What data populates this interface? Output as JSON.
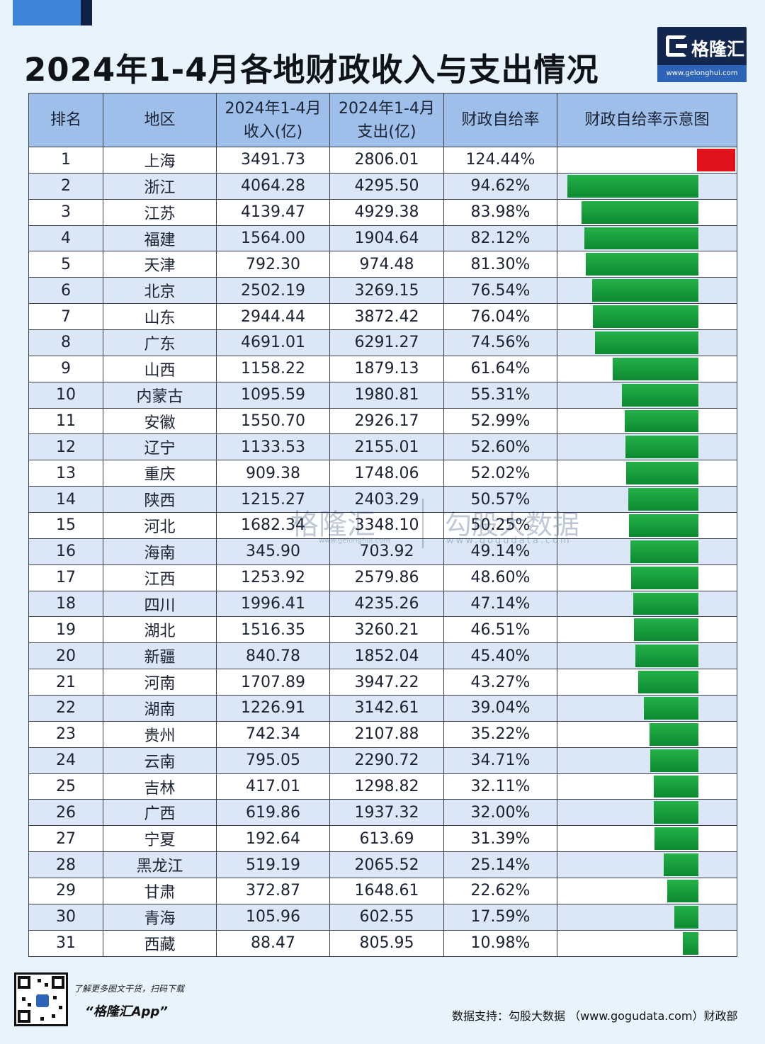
{
  "title": "2024年1-4月各地财政收入与支出情况",
  "logo": {
    "name": "格隆汇",
    "url": "www.gelonghui.com"
  },
  "colors": {
    "header_bg": "#9dbfe9",
    "bar_green": "#14963a",
    "bar_red": "#e0131c",
    "row_alt": "#dbe7f6"
  },
  "headers": {
    "rank": "排名",
    "region": "地区",
    "income": "2024年1-4月\n收入(亿)",
    "expense": "2024年1-4月\n支出(亿)",
    "ratio": "财政自给率",
    "chart": "财政自给率示意图"
  },
  "chart_data": {
    "type": "table",
    "columns": [
      "排名",
      "地区",
      "2024年1-4月收入(亿)",
      "2024年1-4月支出(亿)",
      "财政自给率",
      "财政自给率示意图"
    ],
    "bar_scale_max": 100,
    "rows": [
      {
        "rank": "1",
        "region": "上海",
        "income": "3491.73",
        "expense": "2806.01",
        "ratio": "124.44%",
        "value": 124.44
      },
      {
        "rank": "2",
        "region": "浙江",
        "income": "4064.28",
        "expense": "4295.50",
        "ratio": "94.62%",
        "value": 94.62
      },
      {
        "rank": "3",
        "region": "江苏",
        "income": "4139.47",
        "expense": "4929.38",
        "ratio": "83.98%",
        "value": 83.98
      },
      {
        "rank": "4",
        "region": "福建",
        "income": "1564.00",
        "expense": "1904.64",
        "ratio": "82.12%",
        "value": 82.12
      },
      {
        "rank": "5",
        "region": "天津",
        "income": "792.30",
        "expense": "974.48",
        "ratio": "81.30%",
        "value": 81.3
      },
      {
        "rank": "6",
        "region": "北京",
        "income": "2502.19",
        "expense": "3269.15",
        "ratio": "76.54%",
        "value": 76.54
      },
      {
        "rank": "7",
        "region": "山东",
        "income": "2944.44",
        "expense": "3872.42",
        "ratio": "76.04%",
        "value": 76.04
      },
      {
        "rank": "8",
        "region": "广东",
        "income": "4691.01",
        "expense": "6291.27",
        "ratio": "74.56%",
        "value": 74.56
      },
      {
        "rank": "9",
        "region": "山西",
        "income": "1158.22",
        "expense": "1879.13",
        "ratio": "61.64%",
        "value": 61.64
      },
      {
        "rank": "10",
        "region": "内蒙古",
        "income": "1095.59",
        "expense": "1980.81",
        "ratio": "55.31%",
        "value": 55.31
      },
      {
        "rank": "11",
        "region": "安徽",
        "income": "1550.70",
        "expense": "2926.17",
        "ratio": "52.99%",
        "value": 52.99
      },
      {
        "rank": "12",
        "region": "辽宁",
        "income": "1133.53",
        "expense": "2155.01",
        "ratio": "52.60%",
        "value": 52.6
      },
      {
        "rank": "13",
        "region": "重庆",
        "income": "909.38",
        "expense": "1748.06",
        "ratio": "52.02%",
        "value": 52.02
      },
      {
        "rank": "14",
        "region": "陕西",
        "income": "1215.27",
        "expense": "2403.29",
        "ratio": "50.57%",
        "value": 50.57
      },
      {
        "rank": "15",
        "region": "河北",
        "income": "1682.34",
        "expense": "3348.10",
        "ratio": "50.25%",
        "value": 50.25
      },
      {
        "rank": "16",
        "region": "海南",
        "income": "345.90",
        "expense": "703.92",
        "ratio": "49.14%",
        "value": 49.14
      },
      {
        "rank": "17",
        "region": "江西",
        "income": "1253.92",
        "expense": "2579.86",
        "ratio": "48.60%",
        "value": 48.6
      },
      {
        "rank": "18",
        "region": "四川",
        "income": "1996.41",
        "expense": "4235.26",
        "ratio": "47.14%",
        "value": 47.14
      },
      {
        "rank": "19",
        "region": "湖北",
        "income": "1516.35",
        "expense": "3260.21",
        "ratio": "46.51%",
        "value": 46.51
      },
      {
        "rank": "20",
        "region": "新疆",
        "income": "840.78",
        "expense": "1852.04",
        "ratio": "45.40%",
        "value": 45.4
      },
      {
        "rank": "21",
        "region": "河南",
        "income": "1707.89",
        "expense": "3947.22",
        "ratio": "43.27%",
        "value": 43.27
      },
      {
        "rank": "22",
        "region": "湖南",
        "income": "1226.91",
        "expense": "3142.61",
        "ratio": "39.04%",
        "value": 39.04
      },
      {
        "rank": "23",
        "region": "贵州",
        "income": "742.34",
        "expense": "2107.88",
        "ratio": "35.22%",
        "value": 35.22
      },
      {
        "rank": "24",
        "region": "云南",
        "income": "795.05",
        "expense": "2290.72",
        "ratio": "34.71%",
        "value": 34.71
      },
      {
        "rank": "25",
        "region": "吉林",
        "income": "417.01",
        "expense": "1298.82",
        "ratio": "32.11%",
        "value": 32.11
      },
      {
        "rank": "26",
        "region": "广西",
        "income": "619.86",
        "expense": "1937.32",
        "ratio": "32.00%",
        "value": 32.0
      },
      {
        "rank": "27",
        "region": "宁夏",
        "income": "192.64",
        "expense": "613.69",
        "ratio": "31.39%",
        "value": 31.39
      },
      {
        "rank": "28",
        "region": "黑龙江",
        "income": "519.19",
        "expense": "2065.52",
        "ratio": "25.14%",
        "value": 25.14
      },
      {
        "rank": "29",
        "region": "甘肃",
        "income": "372.87",
        "expense": "1648.61",
        "ratio": "22.62%",
        "value": 22.62
      },
      {
        "rank": "30",
        "region": "青海",
        "income": "105.96",
        "expense": "602.55",
        "ratio": "17.59%",
        "value": 17.59
      },
      {
        "rank": "31",
        "region": "西藏",
        "income": "88.47",
        "expense": "805.95",
        "ratio": "10.98%",
        "value": 10.98
      }
    ]
  },
  "watermark": {
    "left": "格隆汇",
    "left_url": "www.gelonghui.com",
    "right": "勾股大数据",
    "right_url": "www.gogudata.com"
  },
  "footer": {
    "promo_line1": "了解更多图文干货，扫码下载",
    "promo_line2": "“格隆汇App”",
    "source": "数据支持：勾股大数据 （www.gogudata.com）财政部"
  }
}
